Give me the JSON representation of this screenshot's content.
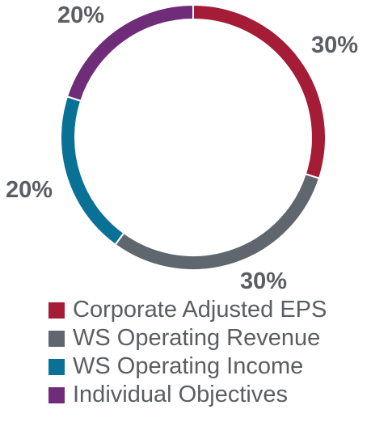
{
  "chart_data": {
    "type": "pie",
    "variant": "donut",
    "title": "",
    "categories": [
      "Corporate Adjusted EPS",
      "WS Operating Revenue",
      "WS Operating Income",
      "Individual Objectives"
    ],
    "values": [
      30,
      30,
      20,
      20
    ],
    "value_labels": [
      "30%",
      "30%",
      "20%",
      "20%"
    ],
    "colors": [
      "#a51c36",
      "#5f666d",
      "#0a7196",
      "#6f2c79"
    ],
    "legend_position": "bottom",
    "start_angle_deg": 0,
    "direction": "clockwise"
  }
}
